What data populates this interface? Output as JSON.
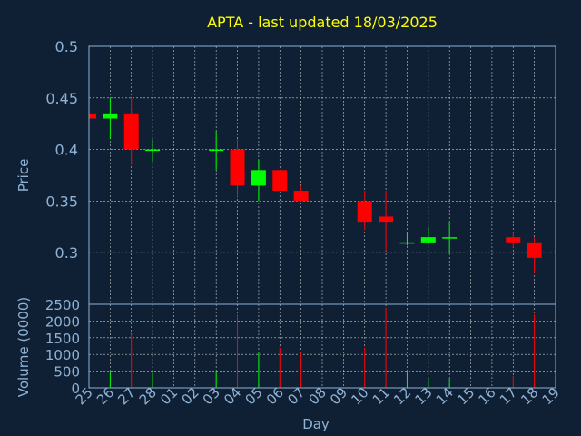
{
  "colors": {
    "background": "#0f2035",
    "title": "#ffff00",
    "axis_text": "#8fb2d4",
    "grid": "#c8c8c8",
    "frame": "#8fb2d4",
    "up": "#00ff00",
    "down": "#ff0000"
  },
  "chart_data": [
    {
      "type": "candlestick",
      "title": "APTA - last updated 18/03/2025",
      "ylabel": "Price",
      "ylim": [
        0.25,
        0.5
      ],
      "yticks": [
        "0.5",
        "0.45",
        "0.4",
        "0.35",
        "0.3"
      ],
      "ytick_values": [
        0.5,
        0.45,
        0.4,
        0.35,
        0.3
      ],
      "grid": true,
      "x": [
        "25",
        "26",
        "27",
        "28",
        "01",
        "02",
        "03",
        "04",
        "05",
        "06",
        "07",
        "08",
        "09",
        "10",
        "11",
        "12",
        "13",
        "14",
        "15",
        "16",
        "17",
        "18",
        "19"
      ],
      "candles": [
        {
          "day": "25",
          "open": 0.435,
          "high": 0.435,
          "low": 0.43,
          "close": 0.43
        },
        {
          "day": "26",
          "open": 0.43,
          "high": 0.45,
          "low": 0.41,
          "close": 0.435
        },
        {
          "day": "27",
          "open": 0.435,
          "high": 0.45,
          "low": 0.385,
          "close": 0.4
        },
        {
          "day": "28",
          "open": 0.4,
          "high": 0.41,
          "low": 0.388,
          "close": 0.4
        },
        {
          "day": "03",
          "open": 0.4,
          "high": 0.418,
          "low": 0.38,
          "close": 0.4
        },
        {
          "day": "04",
          "open": 0.4,
          "high": 0.41,
          "low": 0.353,
          "close": 0.365
        },
        {
          "day": "05",
          "open": 0.365,
          "high": 0.39,
          "low": 0.35,
          "close": 0.38
        },
        {
          "day": "06",
          "open": 0.38,
          "high": 0.38,
          "low": 0.36,
          "close": 0.36
        },
        {
          "day": "07",
          "open": 0.36,
          "high": 0.365,
          "low": 0.35,
          "close": 0.35
        },
        {
          "day": "10",
          "open": 0.35,
          "high": 0.36,
          "low": 0.322,
          "close": 0.33
        },
        {
          "day": "11",
          "open": 0.335,
          "high": 0.36,
          "low": 0.302,
          "close": 0.33
        },
        {
          "day": "12",
          "open": 0.31,
          "high": 0.32,
          "low": 0.307,
          "close": 0.31
        },
        {
          "day": "13",
          "open": 0.31,
          "high": 0.325,
          "low": 0.308,
          "close": 0.315
        },
        {
          "day": "14",
          "open": 0.315,
          "high": 0.33,
          "low": 0.3,
          "close": 0.315
        },
        {
          "day": "17",
          "open": 0.315,
          "high": 0.32,
          "low": 0.305,
          "close": 0.31
        },
        {
          "day": "18",
          "open": 0.31,
          "high": 0.315,
          "low": 0.28,
          "close": 0.295
        }
      ]
    },
    {
      "type": "bar",
      "ylabel": "Volume (0000)",
      "xlabel": "Day",
      "ylim": [
        0,
        2500
      ],
      "yticks": [
        "2500",
        "2000",
        "1500",
        "1000",
        "500",
        "0"
      ],
      "ytick_values": [
        2500,
        2000,
        1500,
        1000,
        500,
        0
      ],
      "categories": [
        "25",
        "26",
        "27",
        "28",
        "01",
        "02",
        "03",
        "04",
        "05",
        "06",
        "07",
        "08",
        "09",
        "10",
        "11",
        "12",
        "13",
        "14",
        "15",
        "16",
        "17",
        "18",
        "19"
      ],
      "values": [
        0,
        500,
        1600,
        450,
        0,
        0,
        500,
        2200,
        1050,
        1200,
        1050,
        0,
        0,
        1200,
        2400,
        480,
        300,
        280,
        0,
        0,
        350,
        2200,
        0
      ],
      "bar_colors": [
        "",
        "up",
        "down",
        "up",
        "",
        "",
        "up",
        "down",
        "up",
        "down",
        "down",
        "",
        "",
        "down",
        "down",
        "up",
        "up",
        "up",
        "",
        "",
        "down",
        "down",
        ""
      ]
    }
  ]
}
